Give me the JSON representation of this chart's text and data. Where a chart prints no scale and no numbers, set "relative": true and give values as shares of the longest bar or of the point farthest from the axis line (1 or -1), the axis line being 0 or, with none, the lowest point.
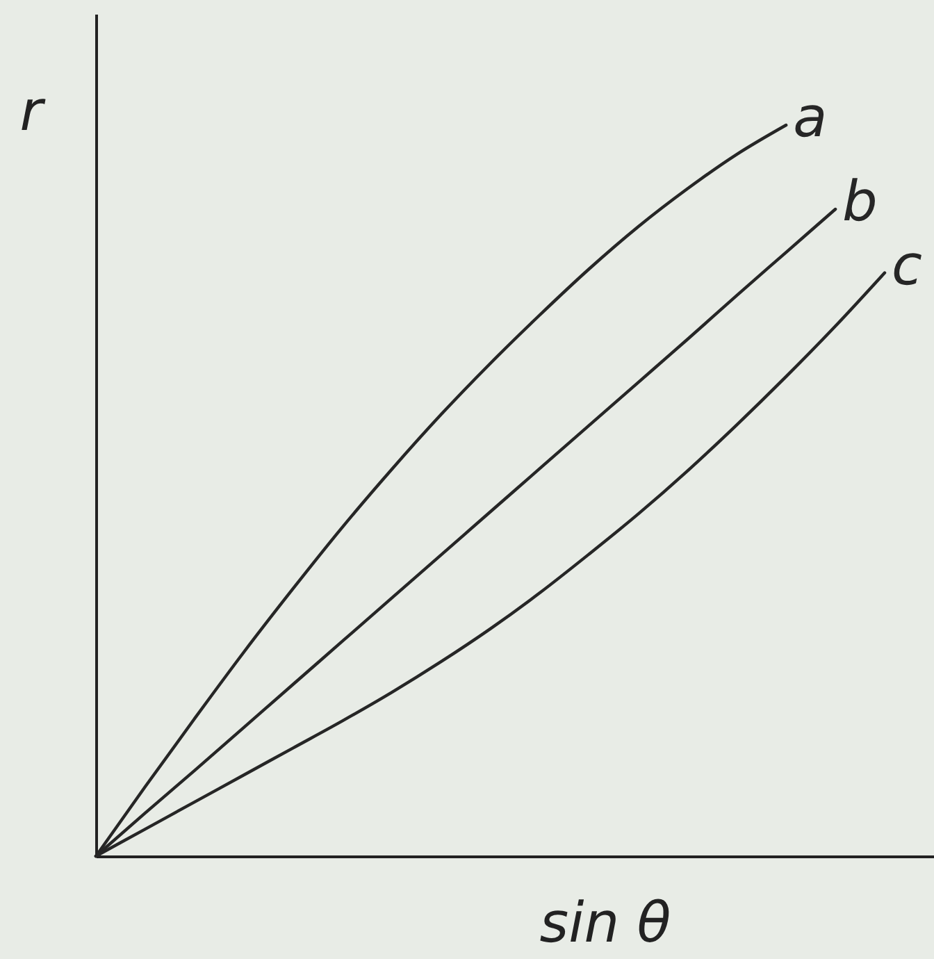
{
  "chart_data": {
    "type": "line",
    "xlabel": "sin θ",
    "ylabel": "r",
    "relative": true,
    "categories": [
      null,
      null,
      null,
      null,
      null,
      null,
      null,
      null,
      null,
      null,
      null,
      null,
      null,
      null,
      null,
      null,
      null
    ],
    "series": [
      {
        "name": "a",
        "color": "#262626",
        "values": [
          0,
          0.095,
          0.188,
          0.279,
          0.366,
          0.45,
          0.529,
          0.604,
          0.674,
          0.74,
          0.803,
          0.861,
          0.913,
          0.96,
          1,
          null,
          null
        ]
      },
      {
        "name": "b",
        "color": "#262626",
        "values": [
          0,
          0.059,
          0.117,
          0.176,
          0.235,
          0.294,
          0.353,
          0.412,
          0.471,
          0.53,
          0.589,
          0.648,
          0.707,
          0.767,
          0.826,
          0.885,
          null
        ]
      },
      {
        "name": "c",
        "color": "#262626",
        "values": [
          0,
          0.037,
          0.074,
          0.111,
          0.148,
          0.185,
          0.224,
          0.266,
          0.311,
          0.36,
          0.413,
          0.468,
          0.527,
          0.59,
          0.656,
          0.725,
          0.798
        ]
      }
    ]
  }
}
